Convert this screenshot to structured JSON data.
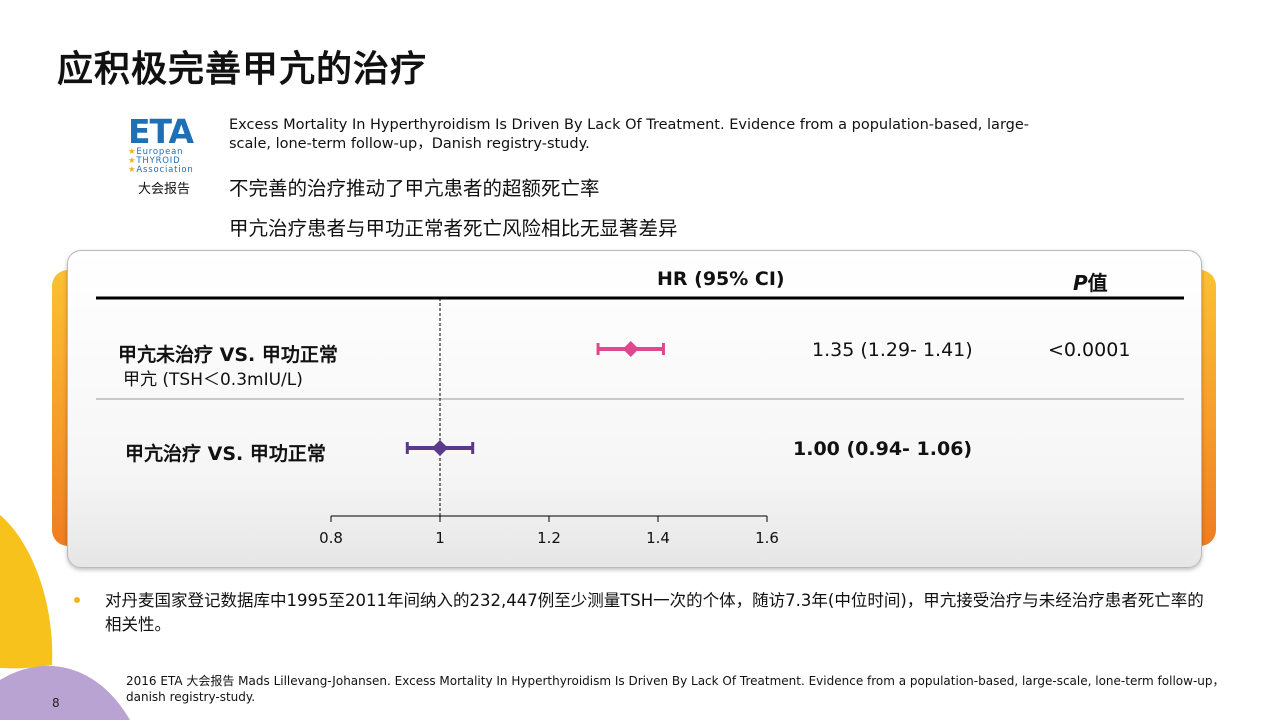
{
  "slide": {
    "title": "应积极完善甲亢的治疗",
    "page_number": "8"
  },
  "logo": {
    "mark": "ETA",
    "line1": "European",
    "line2": "THYROID",
    "line3": "Association",
    "caption": "大会报告"
  },
  "study": {
    "title_en": "Excess Mortality In Hyperthyroidism Is Driven By Lack Of Treatment. Evidence from a population-based, large-scale, lone-term follow-up，Danish registry-study.",
    "finding1": "不完善的治疗推动了甲亢患者的超额死亡率",
    "finding2": "甲亢治疗患者与甲功正常者死亡风险相比无显著差异"
  },
  "table": {
    "hr_header": "HR (95% CI)",
    "p_header_italic": "P",
    "p_header_rest": "值"
  },
  "chart_data": {
    "type": "forest",
    "reference_line": 1,
    "xlim": [
      0.8,
      1.6
    ],
    "x_ticks": [
      "0.8",
      "1",
      "1.2",
      "1.4",
      "1.6"
    ],
    "colors": {
      "untreated": "#e0478f",
      "treated": "#5b3a8c"
    },
    "rows": [
      {
        "label": "甲亢未治疗 VS. 甲功正常",
        "sublabel": "甲亢 (TSH＜0.3mIU/L)",
        "hr": 1.35,
        "lower": 1.29,
        "upper": 1.41,
        "hr_text": "1.35 (1.29- 1.41)",
        "p_text": "<0.0001"
      },
      {
        "label": "甲亢治疗 VS. 甲功正常",
        "sublabel": "",
        "hr": 1.0,
        "lower": 0.94,
        "upper": 1.06,
        "hr_text": "1.00 (0.94- 1.06)",
        "p_text": ""
      }
    ]
  },
  "notes": {
    "bullet": "对丹麦国家登记数据库中1995至2011年间纳入的232,447例至少测量TSH一次的个体，随访7.3年(中位时间)，甲亢接受治疗与未经治疗患者死亡率的相关性。",
    "reference": "2016 ETA 大会报告 Mads Lillevang-Johansen. Excess Mortality In Hyperthyroidism Is Driven By Lack Of Treatment. Evidence from a population-based, large-scale, lone-term follow-up，danish registry-study."
  }
}
